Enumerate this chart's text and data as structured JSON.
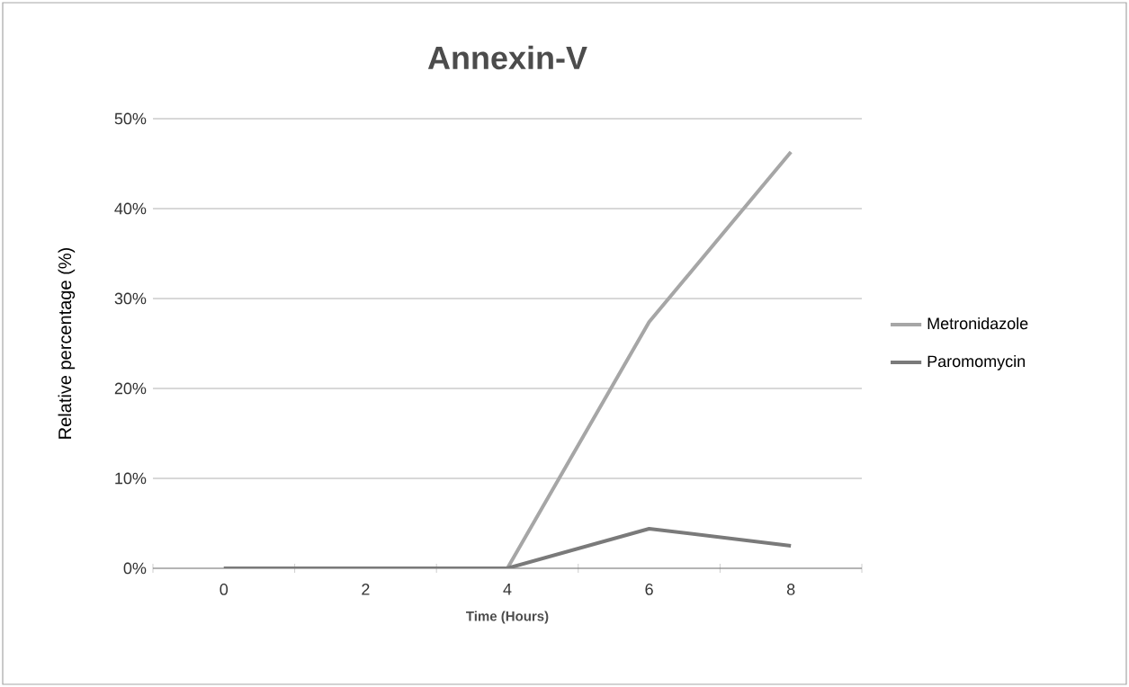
{
  "chart_data": {
    "type": "line",
    "title": "Annexin-V",
    "xlabel": "Time (Hours)",
    "ylabel": "Relative percentage (%)",
    "categories": [
      "0",
      "2",
      "4",
      "6",
      "8"
    ],
    "series": [
      {
        "name": "Metronidazole",
        "color": "#a6a6a6",
        "values": [
          0,
          0,
          0,
          27.4,
          46.3
        ]
      },
      {
        "name": "Paromomycin",
        "color": "#7a7a7a",
        "values": [
          0,
          0,
          0,
          4.4,
          2.5
        ]
      }
    ],
    "ylim": [
      0,
      50
    ],
    "yticks": [
      {
        "value": 0,
        "label": "0%"
      },
      {
        "value": 10,
        "label": "10%"
      },
      {
        "value": 20,
        "label": "20%"
      },
      {
        "value": 30,
        "label": "30%"
      },
      {
        "value": 40,
        "label": "40%"
      },
      {
        "value": 50,
        "label": "50%"
      }
    ],
    "grid": "y",
    "legend": "right",
    "marker": "none",
    "line_style": "solid"
  }
}
